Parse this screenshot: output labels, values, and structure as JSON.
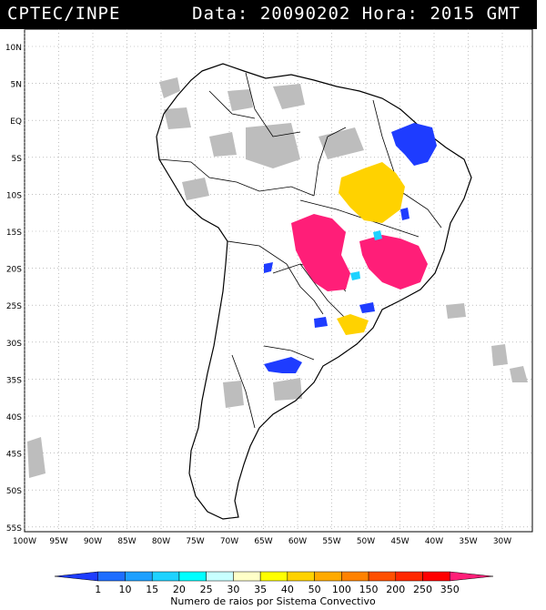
{
  "header": {
    "source": "CPTEC/INPE",
    "date_label": "Data:",
    "date_value": "20090202",
    "hour_label": "Hora:",
    "hour_value": "2015",
    "timezone": "GMT"
  },
  "map": {
    "lat_ticks": [
      "10N",
      "5N",
      "EQ",
      "5S",
      "10S",
      "15S",
      "20S",
      "25S",
      "30S",
      "35S",
      "40S",
      "45S",
      "50S",
      "55S"
    ],
    "lon_ticks": [
      "100W",
      "95W",
      "90W",
      "85W",
      "80W",
      "75W",
      "70W",
      "65W",
      "60W",
      "55W",
      "50W",
      "45W",
      "40W",
      "35W",
      "30W"
    ],
    "grid": "dotted"
  },
  "colorbar": {
    "levels": [
      "1",
      "10",
      "15",
      "20",
      "25",
      "30",
      "35",
      "40",
      "50",
      "100",
      "150",
      "200",
      "250",
      "350"
    ],
    "colors": [
      "#1e3cff",
      "#1e6eff",
      "#1ea0ff",
      "#1ed2ff",
      "#00ffff",
      "#c8ffff",
      "#ffffc8",
      "#ffff00",
      "#ffd200",
      "#ffaa00",
      "#ff8200",
      "#ff5000",
      "#ff2800",
      "#ff0000",
      "#ff1e78"
    ],
    "caption": "Numero de raios por Sistema Convectivo"
  },
  "legend_colors": {
    "cloud": "#bdbdbd",
    "blue": "#1e3cff",
    "yellow": "#ffd200",
    "magenta": "#ff1e78",
    "cyan": "#1ed2ff"
  }
}
